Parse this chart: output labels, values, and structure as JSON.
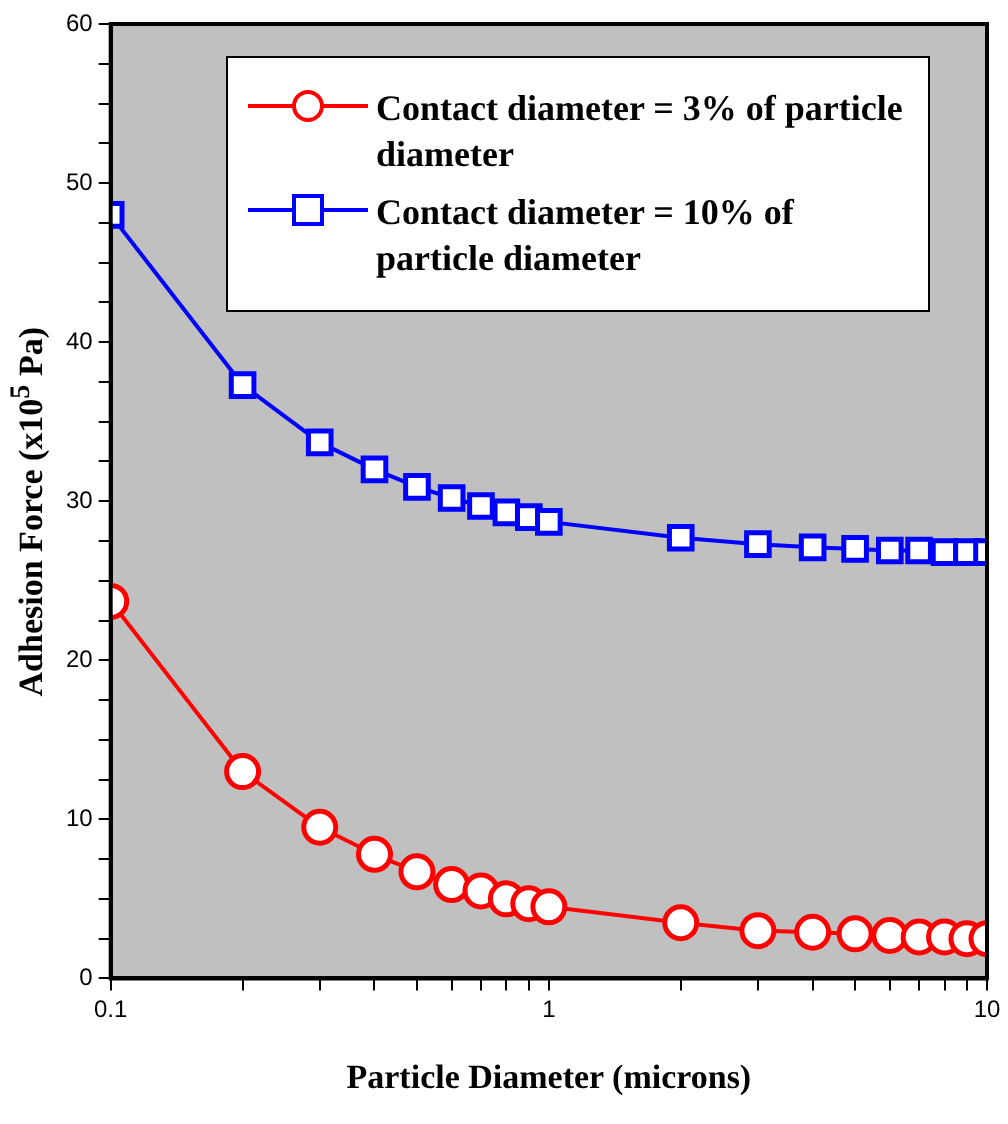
{
  "chart_data": {
    "type": "line",
    "xlabel": "Particle Diameter (microns)",
    "ylabel": "Adhesion Force (x10$^{5}$ Pa)",
    "x": [
      0.1,
      0.2,
      0.3,
      0.4,
      0.5,
      0.6,
      0.7,
      0.8,
      0.9,
      1,
      2,
      3,
      4,
      5,
      6,
      7,
      8,
      9,
      10
    ],
    "series": [
      {
        "name": "Contact diameter = 3% of particle diameter",
        "color": "#ff0000",
        "marker": "circle",
        "values": [
          23.7,
          13,
          9.5,
          7.8,
          6.7,
          5.9,
          5.5,
          5.0,
          4.7,
          4.5,
          3.5,
          3.0,
          2.9,
          2.8,
          2.7,
          2.6,
          2.6,
          2.5,
          2.5
        ]
      },
      {
        "name": "Contact diameter = 10% of particle diameter",
        "color": "#0000ff",
        "marker": "square",
        "values": [
          48,
          37.3,
          33.7,
          32,
          30.9,
          30.2,
          29.7,
          29.3,
          29.0,
          28.7,
          27.7,
          27.3,
          27.1,
          27.0,
          26.9,
          26.9,
          26.8,
          26.8,
          26.8
        ]
      }
    ],
    "log": "x",
    "xlim": [
      0.1,
      10
    ],
    "xticks": [
      0.1,
      {
        "value": 0.2,
        "label": null
      },
      {
        "value": 0.3,
        "label": null
      },
      {
        "value": 0.4,
        "label": null
      },
      {
        "value": 0.5,
        "label": null
      },
      {
        "value": 0.6,
        "label": null
      },
      {
        "value": 0.7,
        "label": null
      },
      {
        "value": 0.8,
        "label": null
      },
      {
        "value": 0.9,
        "label": null
      },
      1,
      {
        "value": 2,
        "label": null
      },
      {
        "value": 3,
        "label": null
      },
      {
        "value": 4,
        "label": null
      },
      {
        "value": 5,
        "label": null
      },
      {
        "value": 6,
        "label": null
      },
      {
        "value": 7,
        "label": null
      },
      {
        "value": 8,
        "label": null
      },
      {
        "value": 9,
        "label": null
      },
      10
    ],
    "ylim": [
      0,
      60
    ],
    "yticks": [
      0,
      {
        "value": 2.5,
        "label": null
      },
      {
        "value": 5,
        "label": null
      },
      {
        "value": 7.5,
        "label": null
      },
      10,
      {
        "value": 12.5,
        "label": null
      },
      {
        "value": 15,
        "label": null
      },
      {
        "value": 17.5,
        "label": null
      },
      20,
      {
        "value": 22.5,
        "label": null
      },
      {
        "value": 25,
        "label": null
      },
      {
        "value": 27.5,
        "label": null
      },
      30,
      {
        "value": 32.5,
        "label": null
      },
      {
        "value": 35,
        "label": null
      },
      {
        "value": 37.5,
        "label": null
      },
      40,
      {
        "value": 42.5,
        "label": null
      },
      {
        "value": 45,
        "label": null
      },
      {
        "value": 47.5,
        "label": null
      },
      50,
      {
        "value": 52.5,
        "label": null
      },
      {
        "value": 55,
        "label": null
      },
      {
        "value": 57.5,
        "label": null
      },
      60
    ],
    "grid": false,
    "legend": "top right",
    "line_style": "solid"
  }
}
